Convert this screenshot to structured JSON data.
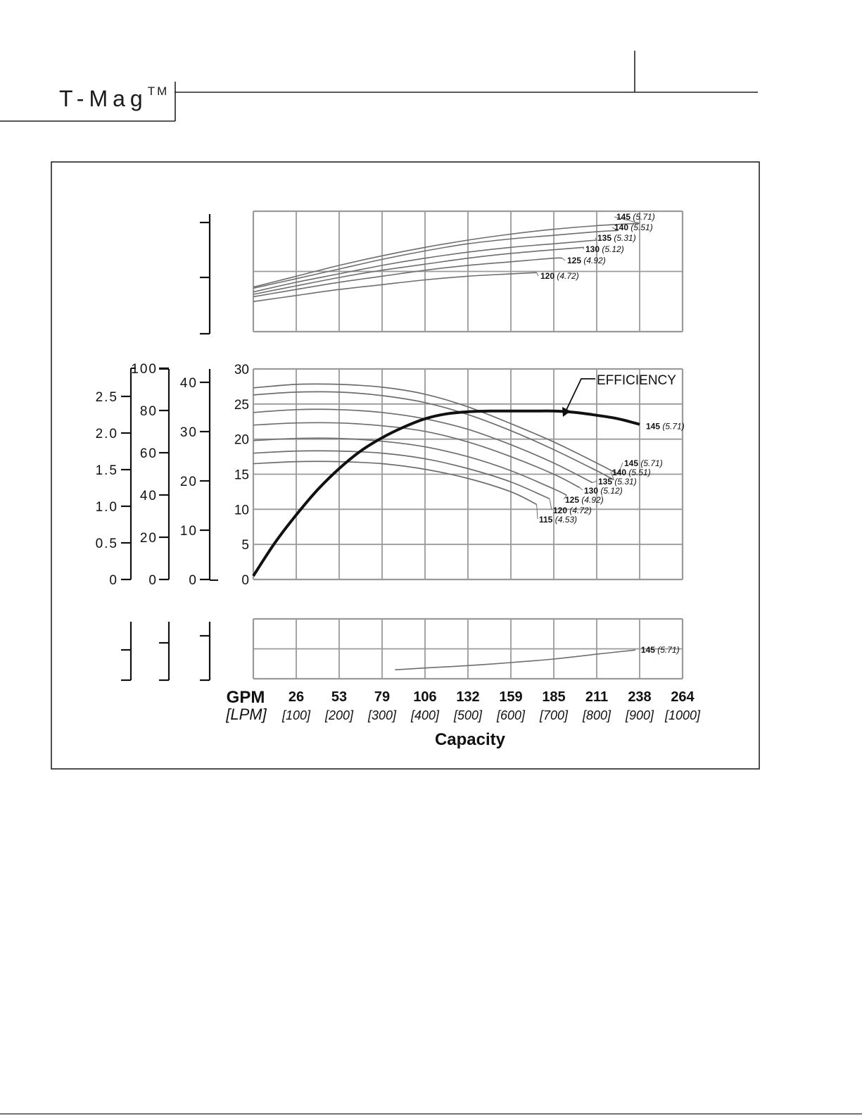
{
  "header": {
    "title": "T-Mag",
    "trademark": "TM"
  },
  "chart_data": [
    {
      "type": "line",
      "panel": "top",
      "xlim": [
        0,
        1000
      ],
      "ylim": [
        0,
        1
      ],
      "series": [
        {
          "name": "145",
          "label_paren": "(5.71)",
          "x": [
            0,
            100,
            200,
            300,
            400,
            500,
            600,
            700,
            800,
            900
          ],
          "y": [
            0.37,
            0.46,
            0.55,
            0.63,
            0.7,
            0.76,
            0.81,
            0.85,
            0.88,
            0.9
          ]
        },
        {
          "name": "140",
          "label_paren": "(5.51)",
          "x": [
            0,
            100,
            200,
            300,
            400,
            500,
            600,
            700,
            800,
            850
          ],
          "y": [
            0.36,
            0.44,
            0.52,
            0.6,
            0.67,
            0.73,
            0.77,
            0.8,
            0.83,
            0.84
          ]
        },
        {
          "name": "135",
          "label_paren": "(5.31)",
          "x": [
            0,
            100,
            200,
            300,
            400,
            500,
            600,
            700,
            800
          ],
          "y": [
            0.33,
            0.41,
            0.48,
            0.55,
            0.61,
            0.66,
            0.7,
            0.73,
            0.76
          ]
        },
        {
          "name": "130",
          "label_paren": "(5.12)",
          "x": [
            0,
            100,
            200,
            300,
            400,
            500,
            600,
            700,
            770
          ],
          "y": [
            0.31,
            0.38,
            0.45,
            0.51,
            0.56,
            0.61,
            0.65,
            0.68,
            0.7
          ]
        },
        {
          "name": "125",
          "label_paren": "(4.92)",
          "x": [
            0,
            100,
            200,
            300,
            400,
            500,
            600,
            700,
            720
          ],
          "y": [
            0.29,
            0.35,
            0.41,
            0.46,
            0.51,
            0.55,
            0.58,
            0.61,
            0.61
          ]
        },
        {
          "name": "120",
          "label_paren": "(4.72)",
          "x": [
            0,
            100,
            200,
            300,
            400,
            500,
            600,
            660
          ],
          "y": [
            0.25,
            0.3,
            0.35,
            0.39,
            0.43,
            0.46,
            0.48,
            0.49
          ]
        }
      ]
    },
    {
      "type": "line",
      "panel": "middle",
      "xlim": [
        0,
        1000
      ],
      "ylim": [
        0,
        30
      ],
      "yticks": [
        "0",
        "5",
        "10",
        "15",
        "20",
        "25",
        "30"
      ],
      "left_axes": [
        {
          "ticks": [
            "0",
            "0.5",
            "1.0",
            "1.5",
            "2.0",
            "2.5"
          ]
        },
        {
          "ticks": [
            "0",
            "20",
            "40",
            "60",
            "80",
            "100"
          ]
        },
        {
          "ticks": [
            "0",
            "10",
            "20",
            "30",
            "40"
          ]
        }
      ],
      "series": [
        {
          "name": "145",
          "label_paren": "(5.71)",
          "x": [
            0,
            100,
            200,
            300,
            400,
            500,
            600,
            700,
            800,
            850
          ],
          "y": [
            27.3,
            27.8,
            27.8,
            27.4,
            26.4,
            24.6,
            22.2,
            19.6,
            16.6,
            15.0
          ]
        },
        {
          "name": "140",
          "label_paren": "(5.51)",
          "x": [
            0,
            100,
            200,
            300,
            400,
            500,
            600,
            700,
            800,
            840
          ],
          "y": [
            26.3,
            26.7,
            26.7,
            26.2,
            25.2,
            23.5,
            21.2,
            18.5,
            15.5,
            14.2
          ]
        },
        {
          "name": "135",
          "label_paren": "(5.31)",
          "x": [
            0,
            100,
            200,
            300,
            400,
            500,
            600,
            700,
            790
          ],
          "y": [
            23.8,
            24.2,
            24.2,
            23.8,
            22.9,
            21.4,
            19.2,
            16.6,
            13.8
          ]
        },
        {
          "name": "130",
          "label_paren": "(5.12)",
          "x": [
            0,
            100,
            200,
            300,
            400,
            500,
            600,
            700,
            760
          ],
          "y": [
            22.0,
            22.3,
            22.3,
            21.9,
            21.1,
            19.6,
            17.5,
            15.0,
            13.1
          ]
        },
        {
          "name": "125",
          "label_paren": "(4.92)",
          "x": [
            0,
            100,
            200,
            300,
            400,
            500,
            600,
            700,
            730
          ],
          "y": [
            19.8,
            20.1,
            20.1,
            19.7,
            18.9,
            17.5,
            15.5,
            12.9,
            12.0
          ]
        },
        {
          "name": "120",
          "label_paren": "(4.72)",
          "x": [
            0,
            100,
            200,
            300,
            400,
            500,
            600,
            690
          ],
          "y": [
            18.0,
            18.3,
            18.3,
            18.0,
            17.2,
            15.8,
            13.9,
            11.5
          ]
        },
        {
          "name": "115",
          "label_paren": "(4.53)",
          "x": [
            0,
            100,
            200,
            300,
            400,
            500,
            600,
            660
          ],
          "y": [
            16.5,
            16.8,
            16.8,
            16.5,
            15.7,
            14.4,
            12.5,
            10.7
          ]
        }
      ],
      "efficiency": {
        "label": "EFFICIENCY",
        "name": "145",
        "label_paren": "(5.71)",
        "x": [
          0,
          50,
          100,
          150,
          200,
          250,
          300,
          350,
          400,
          450,
          500,
          550,
          600,
          650,
          700,
          750,
          800,
          850,
          900
        ],
        "y": [
          0.5,
          5.2,
          9.2,
          12.8,
          15.8,
          18.3,
          20.2,
          21.7,
          22.9,
          23.6,
          23.9,
          24.0,
          24.0,
          24.0,
          24.0,
          23.8,
          23.4,
          22.9,
          22.1
        ]
      }
    },
    {
      "type": "line",
      "panel": "bottom",
      "xlim": [
        0,
        1000
      ],
      "ylim": [
        0,
        1
      ],
      "series": [
        {
          "name": "145",
          "label_paren": "(5.71)",
          "x": [
            330,
            400,
            500,
            600,
            700,
            800,
            890
          ],
          "y": [
            0.15,
            0.18,
            0.22,
            0.27,
            0.33,
            0.41,
            0.48
          ]
        }
      ]
    }
  ],
  "x_axis": {
    "gpm_label": "GPM",
    "lpm_label": "[LPM]",
    "gpm_ticks": [
      "26",
      "53",
      "79",
      "106",
      "132",
      "159",
      "185",
      "211",
      "238",
      "264"
    ],
    "lpm_ticks": [
      "[100]",
      "[200]",
      "[300]",
      "[400]",
      "[500]",
      "[600]",
      "[700]",
      "[800]",
      "[900]",
      "[1000]"
    ],
    "title": "Capacity"
  }
}
